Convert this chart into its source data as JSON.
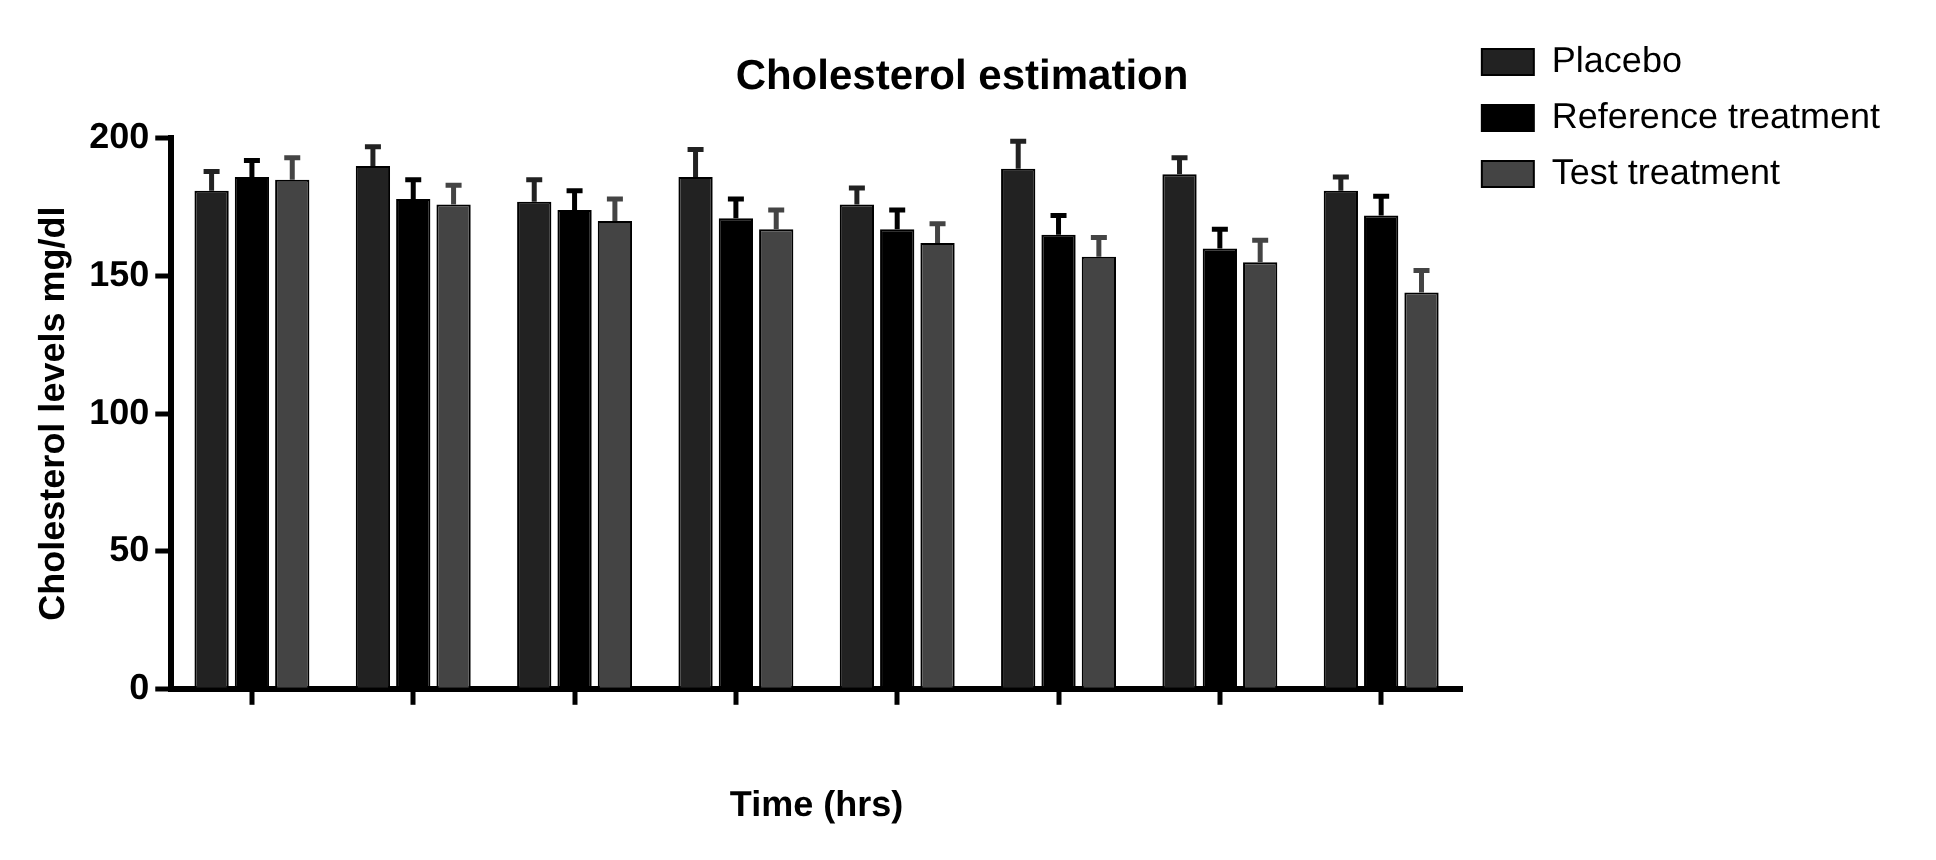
{
  "chart_data": {
    "type": "bar",
    "title": "Cholesterol estimation",
    "xlabel": "Time (hrs)",
    "ylabel": "Cholesterol levels mg/dl",
    "categories": [
      null,
      null,
      null,
      null,
      null,
      null,
      null,
      null
    ],
    "series": [
      {
        "name": "Placebo",
        "color": "#222222",
        "values": [
          181,
          190,
          177,
          186,
          176,
          189,
          187,
          181
        ],
        "errors": [
          [
            181,
            188
          ],
          [
            190,
            197
          ],
          [
            177,
            185
          ],
          [
            186,
            196
          ],
          [
            176,
            182
          ],
          [
            189,
            199
          ],
          [
            187,
            193
          ],
          [
            181,
            186
          ]
        ]
      },
      {
        "name": "Reference treatment",
        "color": "#000000",
        "values": [
          186,
          178,
          174,
          171,
          167,
          165,
          160,
          172
        ],
        "errors": [
          [
            186,
            192
          ],
          [
            178,
            185
          ],
          [
            174,
            181
          ],
          [
            171,
            178
          ],
          [
            167,
            174
          ],
          [
            165,
            172
          ],
          [
            160,
            167
          ],
          [
            172,
            179
          ]
        ]
      },
      {
        "name": "Test treatment",
        "color": "#444444",
        "values": [
          185,
          176,
          170,
          167,
          162,
          157,
          155,
          144
        ],
        "errors": [
          [
            185,
            193
          ],
          [
            176,
            183
          ],
          [
            170,
            178
          ],
          [
            167,
            174
          ],
          [
            162,
            169
          ],
          [
            157,
            164
          ],
          [
            155,
            163
          ],
          [
            144,
            152
          ]
        ]
      }
    ],
    "ylim": [
      0,
      200
    ],
    "yticks": [
      0,
      50,
      100,
      150,
      200
    ],
    "grid": false,
    "legend": "top right",
    "tick_labels": "y"
  }
}
